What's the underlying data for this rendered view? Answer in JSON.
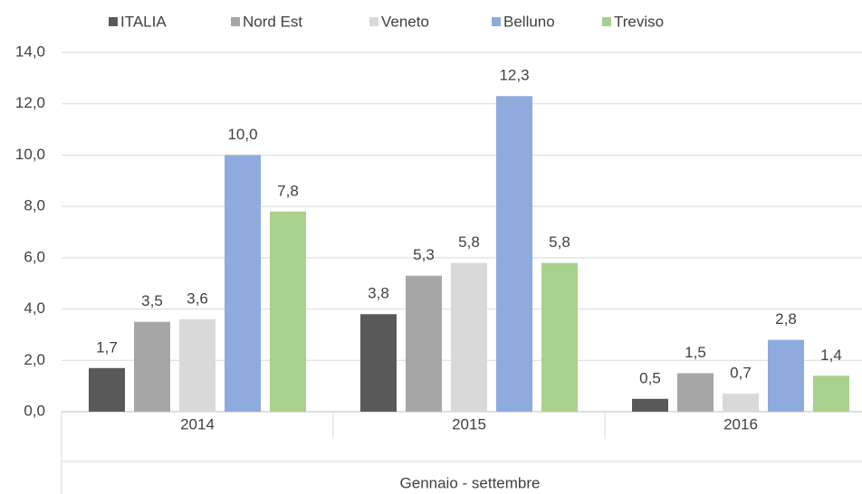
{
  "chart_data": {
    "type": "bar",
    "categories": [
      "2014",
      "2015",
      "2016"
    ],
    "xlabel": "Gennaio - settembre",
    "series": [
      {
        "name": "ITALIA",
        "color": "#595959",
        "values": [
          1.7,
          3.8,
          0.5
        ],
        "value_labels": [
          "1,7",
          "3,8",
          "0,5"
        ]
      },
      {
        "name": "Nord Est",
        "color": "#a6a6a6",
        "values": [
          3.5,
          5.3,
          1.5
        ],
        "value_labels": [
          "3,5",
          "5,3",
          "1,5"
        ]
      },
      {
        "name": "Veneto",
        "color": "#d9d9d9",
        "values": [
          3.6,
          5.8,
          0.7
        ],
        "value_labels": [
          "3,6",
          "5,8",
          "0,7"
        ]
      },
      {
        "name": "Belluno",
        "color": "#8faadc",
        "values": [
          10.0,
          12.3,
          2.8
        ],
        "value_labels": [
          "10,0",
          "12,3",
          "2,8"
        ]
      },
      {
        "name": "Treviso",
        "color": "#a9d18e",
        "values": [
          7.8,
          5.8,
          1.4
        ],
        "value_labels": [
          "7,8",
          "5,8",
          "1,4"
        ]
      }
    ],
    "ylim": [
      0,
      14
    ],
    "yticks": [
      {
        "value": 0,
        "label": "0,0"
      },
      {
        "value": 2,
        "label": "2,0"
      },
      {
        "value": 4,
        "label": "4,0"
      },
      {
        "value": 6,
        "label": "6,0"
      },
      {
        "value": 8,
        "label": "8,0"
      },
      {
        "value": 10,
        "label": "10,0"
      },
      {
        "value": 12,
        "label": "12,0"
      },
      {
        "value": 14,
        "label": "14,0"
      }
    ],
    "grid": true,
    "legend": "top"
  }
}
